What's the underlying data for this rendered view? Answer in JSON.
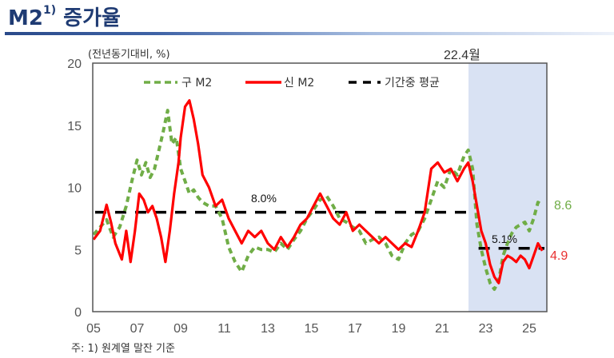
{
  "header": {
    "title_main": "M2",
    "title_sup": "1)",
    "title_rest": "증가율"
  },
  "footnote": "주: 1) 원계열 말잔 기준",
  "colors": {
    "old_m2": "#70ad47",
    "new_m2": "#ff0000",
    "average": "#000000",
    "shade": "#d9e2f3",
    "title": "#1f3b73"
  },
  "chart_data": {
    "type": "line",
    "title": "M2 증가율",
    "unit_label": "(전년동기대비, %)",
    "xlabel": "",
    "ylabel": "(전년동기대비, %)",
    "ylim": [
      0,
      20
    ],
    "yticks": [
      "0",
      "5",
      "10",
      "15",
      "20"
    ],
    "xlim": [
      2005,
      2025.8
    ],
    "xticks": [
      "05",
      "07",
      "09",
      "11",
      "13",
      "15",
      "17",
      "19",
      "21",
      "23",
      "25"
    ],
    "grid": false,
    "legend_position": "top-inside",
    "legend": [
      "구 M2",
      "신 M2",
      "기간중 평균"
    ],
    "shaded_region": {
      "from": 2022.3,
      "to": 2025.8,
      "label": "22.4월"
    },
    "averages": [
      {
        "label": "8.0%",
        "value": 8.0,
        "from": 2005,
        "to": 2022.3
      },
      {
        "label": "5.1%",
        "value": 5.1,
        "from": 2022.6,
        "to": 2025.8
      }
    ],
    "end_labels": {
      "old_m2": "8.6",
      "new_m2": "4.9"
    },
    "series": [
      {
        "name": "구 M2",
        "style": "dashed",
        "x": [
          2005.0,
          2005.3,
          2005.6,
          2005.9,
          2006.2,
          2006.5,
          2006.8,
          2007.0,
          2007.2,
          2007.4,
          2007.6,
          2007.8,
          2008.0,
          2008.2,
          2008.4,
          2008.6,
          2008.8,
          2009.0,
          2009.2,
          2009.4,
          2009.6,
          2009.8,
          2010.0,
          2010.3,
          2010.6,
          2010.9,
          2011.2,
          2011.5,
          2011.8,
          2012.1,
          2012.4,
          2012.7,
          2013.0,
          2013.3,
          2013.6,
          2013.9,
          2014.2,
          2014.5,
          2014.8,
          2015.1,
          2015.4,
          2015.7,
          2016.0,
          2016.3,
          2016.6,
          2016.9,
          2017.2,
          2017.5,
          2017.8,
          2018.1,
          2018.4,
          2018.7,
          2019.0,
          2019.3,
          2019.6,
          2019.9,
          2020.2,
          2020.5,
          2020.8,
          2021.1,
          2021.4,
          2021.7,
          2022.0,
          2022.2,
          2022.4,
          2022.6,
          2022.8,
          2023.0,
          2023.2,
          2023.4,
          2023.6,
          2023.8,
          2024.0,
          2024.2,
          2024.4,
          2024.6,
          2024.8,
          2025.0,
          2025.2,
          2025.4,
          2025.6
        ],
        "values": [
          6.2,
          6.8,
          7.4,
          6.0,
          6.8,
          8.5,
          10.8,
          12.2,
          11.0,
          12.0,
          10.8,
          11.5,
          13.0,
          14.5,
          16.2,
          13.5,
          14.0,
          11.5,
          10.5,
          9.5,
          9.8,
          9.2,
          8.8,
          8.5,
          8.5,
          7.5,
          5.2,
          4.0,
          3.2,
          4.5,
          5.2,
          5.0,
          5.0,
          4.8,
          5.5,
          5.0,
          5.8,
          6.5,
          7.5,
          8.2,
          9.0,
          9.3,
          8.5,
          7.5,
          7.2,
          6.8,
          6.5,
          5.5,
          5.8,
          6.0,
          5.5,
          4.5,
          4.2,
          5.5,
          6.2,
          6.5,
          7.5,
          9.0,
          10.5,
          10.0,
          11.5,
          11.0,
          12.5,
          13.0,
          11.5,
          7.0,
          5.0,
          3.5,
          2.3,
          1.8,
          2.5,
          4.5,
          5.5,
          6.3,
          6.8,
          7.0,
          7.2,
          6.5,
          7.5,
          8.8,
          8.6
        ]
      },
      {
        "name": "신 M2",
        "style": "solid",
        "x": [
          2005.0,
          2005.3,
          2005.6,
          2005.8,
          2006.0,
          2006.3,
          2006.5,
          2006.7,
          2006.9,
          2007.1,
          2007.3,
          2007.5,
          2007.7,
          2007.9,
          2008.1,
          2008.3,
          2008.5,
          2008.7,
          2008.9,
          2009.0,
          2009.2,
          2009.4,
          2009.6,
          2009.8,
          2010.0,
          2010.3,
          2010.6,
          2010.9,
          2011.2,
          2011.5,
          2011.8,
          2012.1,
          2012.4,
          2012.7,
          2013.0,
          2013.3,
          2013.6,
          2013.9,
          2014.2,
          2014.5,
          2014.8,
          2015.1,
          2015.4,
          2015.7,
          2016.0,
          2016.3,
          2016.6,
          2016.9,
          2017.2,
          2017.5,
          2017.8,
          2018.1,
          2018.4,
          2018.7,
          2019.0,
          2019.3,
          2019.6,
          2019.9,
          2020.2,
          2020.5,
          2020.8,
          2021.1,
          2021.4,
          2021.7,
          2022.0,
          2022.2,
          2022.4,
          2022.6,
          2022.8,
          2023.0,
          2023.2,
          2023.4,
          2023.6,
          2023.8,
          2024.0,
          2024.2,
          2024.4,
          2024.6,
          2024.8,
          2025.0,
          2025.2,
          2025.4,
          2025.6
        ],
        "values": [
          5.8,
          6.5,
          8.6,
          7.2,
          5.5,
          4.2,
          6.5,
          4.0,
          6.5,
          9.5,
          9.0,
          8.0,
          8.5,
          7.5,
          6.0,
          4.0,
          6.5,
          9.5,
          12.0,
          14.0,
          16.5,
          17.0,
          15.5,
          13.5,
          11.0,
          10.0,
          8.5,
          9.0,
          7.5,
          6.5,
          5.5,
          6.5,
          6.0,
          6.5,
          5.5,
          5.0,
          6.0,
          5.2,
          6.0,
          7.0,
          7.5,
          8.5,
          9.5,
          8.5,
          7.5,
          7.0,
          8.0,
          6.5,
          7.0,
          6.5,
          6.0,
          5.5,
          6.0,
          5.5,
          5.0,
          5.5,
          5.2,
          6.5,
          8.0,
          11.5,
          12.0,
          11.2,
          11.5,
          10.5,
          11.5,
          12.0,
          10.5,
          8.5,
          6.5,
          5.5,
          3.8,
          2.8,
          2.3,
          4.0,
          4.5,
          4.3,
          4.0,
          4.5,
          4.2,
          3.5,
          4.5,
          5.5,
          4.9
        ]
      }
    ]
  }
}
